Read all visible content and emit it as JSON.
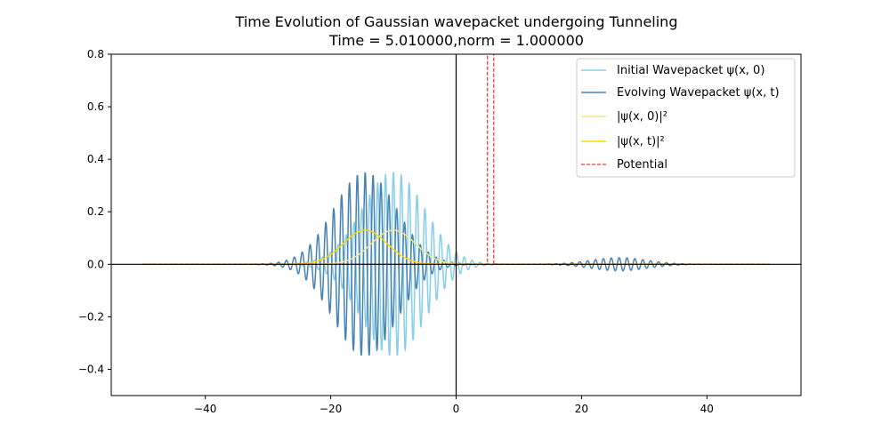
{
  "chart_data": {
    "type": "line",
    "title": "Time Evolution of Gaussian wavepacket undergoing Tunneling",
    "subtitle": "Time =  5.010000,norm =  1.000000",
    "xlabel": "",
    "ylabel": "",
    "xlim": [
      -55,
      55
    ],
    "ylim": [
      -0.5,
      0.8
    ],
    "x_ticks": [
      -40,
      -20,
      0,
      20,
      40
    ],
    "x_tick_labels": [
      "−40",
      "−20",
      "0",
      "20",
      "40"
    ],
    "y_ticks": [
      -0.4,
      -0.2,
      0.0,
      0.2,
      0.4,
      0.6,
      0.8
    ],
    "y_tick_labels": [
      "−0.4",
      "−0.2",
      "0.0",
      "0.2",
      "0.4",
      "0.6",
      "0.8"
    ],
    "grid": false,
    "legend_position": "top-right",
    "x_range": [
      -50,
      50
    ],
    "series": [
      {
        "name": "Initial Wavepacket ψ(x, 0)",
        "color": "#87ceeb",
        "style": "solid",
        "kind": "oscillating-gaussian",
        "center": -10,
        "sigma": 5,
        "amplitude": 0.35,
        "wavenumber": 5
      },
      {
        "name": "Evolving Wavepacket ψ(x, t)",
        "color": "#4682b4",
        "style": "solid",
        "kind": "oscillating-gaussian",
        "center": -14.5,
        "sigma": 5,
        "amplitude": 0.35,
        "wavenumber": 5,
        "transmitted": {
          "center": 26,
          "sigma": 4.5,
          "amplitude": 0.025
        }
      },
      {
        "name": "|ψ(x, 0)|²",
        "color": "#f0e68c",
        "style": "solid",
        "kind": "gaussian",
        "center": -10,
        "sigma": 3.5,
        "amplitude": 0.13
      },
      {
        "name": "|ψ(x, t)|²",
        "color": "#ffd700",
        "style": "solid",
        "kind": "gaussian",
        "center": -14.5,
        "sigma": 3.5,
        "amplitude": 0.13
      },
      {
        "name": "Potential",
        "color": "#ff0000",
        "style": "dashed",
        "kind": "barrier",
        "x_start": 5,
        "x_end": 6,
        "height": 0.8
      }
    ],
    "axis_lines": {
      "x0": 0,
      "y0": 0,
      "color": "#000000"
    }
  }
}
